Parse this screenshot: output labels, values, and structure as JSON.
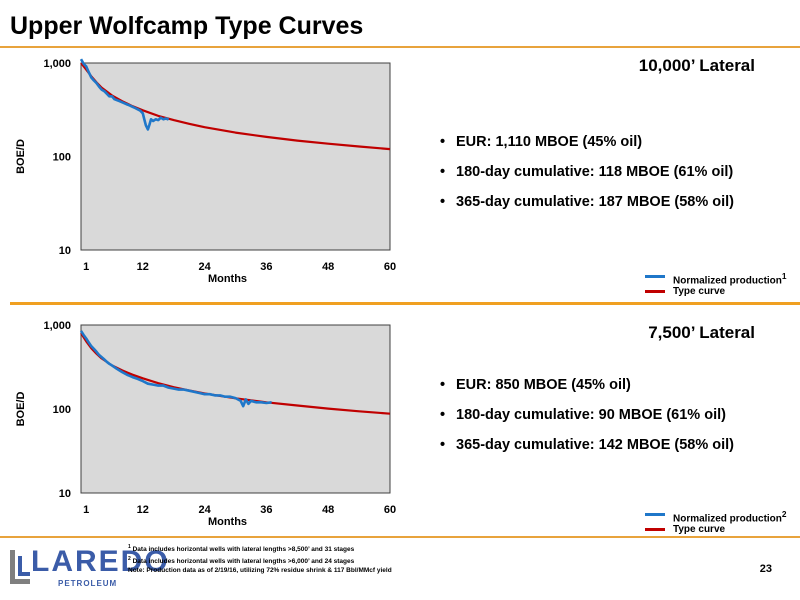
{
  "header": {
    "title": "Upper Wolfcamp Type Curves"
  },
  "panels": [
    {
      "lateral": "10,000’ Lateral",
      "bullets": [
        "EUR:  1,110 MBOE (45% oil)",
        "180-day cumulative:  118 MBOE (61% oil)",
        "365-day cumulative: 187 MBOE (58% oil)"
      ],
      "legend": {
        "normalized": "Normalized production",
        "normalized_sup": "1",
        "type_curve": "Type curve"
      }
    },
    {
      "lateral": "7,500’ Lateral",
      "bullets": [
        "EUR:  850 MBOE (45% oil)",
        "180-day cumulative:  90 MBOE (61% oil)",
        "365-day cumulative: 142 MBOE (58% oil)"
      ],
      "legend": {
        "normalized": "Normalized production",
        "normalized_sup": "2",
        "type_curve": "Type curve"
      }
    }
  ],
  "colors": {
    "normalized": "#1f77c9",
    "type_curve": "#c00000",
    "plot_bg": "#d9d9d9",
    "accent": "#e8a33c"
  },
  "chart_data": [
    {
      "type": "line",
      "ylabel": "BOE/D",
      "xlabel": "Months",
      "yscale": "log",
      "ylim": [
        10,
        1000
      ],
      "xlim": [
        0,
        60
      ],
      "xticks": [
        "1",
        "12",
        "24",
        "36",
        "48",
        "60"
      ],
      "yticks": [
        "10",
        "100",
        "1,000"
      ],
      "series": [
        {
          "name": "Type curve",
          "x": [
            0,
            1,
            2,
            3,
            4,
            6,
            8,
            10,
            12,
            15,
            18,
            21,
            24,
            30,
            36,
            42,
            48,
            54,
            60
          ],
          "y": [
            1000,
            850,
            720,
            620,
            545,
            450,
            390,
            345,
            312,
            272,
            245,
            224,
            206,
            180,
            162,
            148,
            137,
            128,
            120
          ]
        },
        {
          "name": "Normalized production",
          "x": [
            0,
            0.5,
            1,
            1.5,
            2,
            2.5,
            3,
            3.5,
            4,
            4.5,
            5,
            5.5,
            6,
            6.5,
            7,
            7.5,
            8,
            8.5,
            9,
            9.5,
            10,
            10.5,
            11,
            11.5,
            12,
            12.3,
            12.6,
            13,
            13.3,
            13.6,
            14,
            14.5,
            15,
            15.5,
            16,
            16.5,
            17
          ],
          "y": [
            1100,
            980,
            920,
            800,
            700,
            650,
            610,
            560,
            520,
            500,
            470,
            440,
            440,
            410,
            400,
            390,
            380,
            370,
            360,
            350,
            340,
            330,
            320,
            310,
            290,
            250,
            215,
            195,
            220,
            250,
            240,
            250,
            245,
            260,
            250,
            255,
            248
          ]
        }
      ]
    },
    {
      "type": "line",
      "ylabel": "BOE/D",
      "xlabel": "Months",
      "yscale": "log",
      "ylim": [
        10,
        1000
      ],
      "xlim": [
        0,
        60
      ],
      "xticks": [
        "1",
        "12",
        "24",
        "36",
        "48",
        "60"
      ],
      "yticks": [
        "10",
        "100",
        "1,000"
      ],
      "series": [
        {
          "name": "Type curve",
          "x": [
            0,
            1,
            2,
            3,
            4,
            6,
            8,
            10,
            12,
            15,
            18,
            21,
            24,
            30,
            36,
            42,
            48,
            54,
            60
          ],
          "y": [
            800,
            640,
            530,
            455,
            400,
            330,
            288,
            256,
            232,
            203,
            182,
            166,
            153,
            134,
            120,
            110,
            101,
            94,
            88
          ]
        },
        {
          "name": "Normalized production",
          "x": [
            0,
            0.5,
            1,
            1.5,
            2,
            2.5,
            3,
            3.5,
            4,
            4.5,
            5,
            5.5,
            6,
            7,
            8,
            9,
            10,
            11,
            12,
            13,
            14,
            15,
            16,
            17,
            18,
            19,
            20,
            21,
            22,
            23,
            24,
            25,
            26,
            27,
            28,
            29,
            30,
            31,
            31.5,
            32,
            32.5,
            33,
            34,
            35,
            36,
            37
          ],
          "y": [
            850,
            760,
            690,
            620,
            560,
            520,
            480,
            440,
            415,
            390,
            365,
            345,
            330,
            300,
            275,
            255,
            240,
            228,
            215,
            200,
            195,
            190,
            190,
            180,
            175,
            170,
            170,
            165,
            160,
            155,
            150,
            150,
            145,
            145,
            140,
            140,
            135,
            125,
            108,
            130,
            115,
            125,
            120,
            120,
            118,
            120
          ]
        }
      ]
    }
  ],
  "footer": {
    "note1_sup": "1",
    "note1": "Data includes horizontal wells with lateral lengths >8,500’ and 31 stages",
    "note2_sup": "2",
    "note2": "Data includes horizontal wells with lateral lengths >6,000’ and 24 stages",
    "note3": "Note: Production data as of 2/19/16, utilizing 72% residue shrink & 117 Bbl/MMcf yield",
    "page_number": "23",
    "logo_word": "LAREDO",
    "logo_sub": "PETROLEUM"
  }
}
